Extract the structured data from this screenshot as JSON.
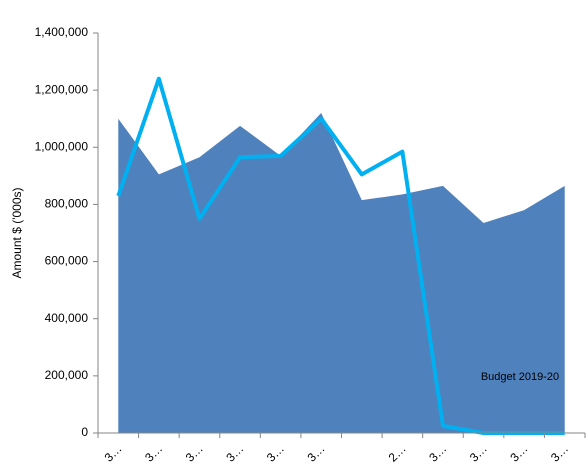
{
  "chart_data": {
    "type": "area-line",
    "y_label": "Amount $ ('000s)",
    "annotation": "Budget 2019-20",
    "categories": [
      "3…",
      "3…",
      "3…",
      "3…",
      "3…",
      "3…",
      null,
      "2…",
      "3…",
      "3…",
      "3…",
      "3…"
    ],
    "series": [
      {
        "kind": "area",
        "color": "#4f81bd",
        "values": [
          1100000,
          905000,
          965000,
          1075000,
          970000,
          1120000,
          815000,
          835000,
          865000,
          735000,
          780000,
          865000
        ]
      },
      {
        "kind": "line",
        "color": "#00b0f0",
        "values": [
          830000,
          1240000,
          750000,
          965000,
          970000,
          1100000,
          905000,
          985000,
          25000,
          0,
          0,
          0
        ]
      }
    ],
    "ylim": [
      0,
      1400000
    ],
    "yticks": [
      0,
      {
        "value": 200000,
        "label": "200,000"
      },
      {
        "value": 400000,
        "label": "400,000"
      },
      {
        "value": 600000,
        "label": "600,000"
      },
      {
        "value": 800000,
        "label": "800,000"
      },
      {
        "value": 1000000,
        "label": "1,000,000"
      },
      {
        "value": 1200000,
        "label": "1,200,000"
      },
      {
        "value": 1400000,
        "label": "1,400,000"
      }
    ]
  }
}
